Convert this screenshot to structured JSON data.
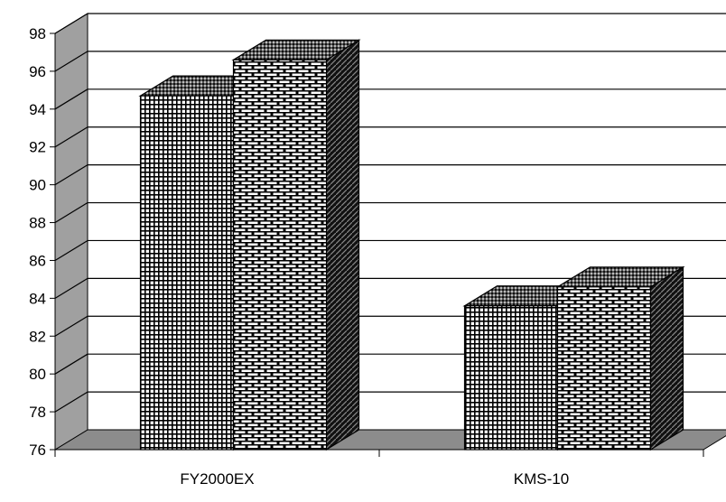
{
  "chart_data": {
    "type": "bar",
    "style": "3d-clustered-column",
    "categories": [
      "FY2000EX",
      "KMS-10"
    ],
    "series": [
      {
        "values": [
          94.7,
          83.6
        ],
        "pattern": "grid"
      },
      {
        "values": [
          96.6,
          84.6
        ],
        "pattern": "brick"
      }
    ],
    "title": "",
    "xlabel": "",
    "ylabel": "",
    "ylim": [
      76,
      98
    ],
    "yticks": [
      76,
      78,
      80,
      82,
      84,
      86,
      88,
      90,
      92,
      94,
      96,
      98
    ],
    "grid": true,
    "legend": "none",
    "colors": {
      "back_wall": "#ffffff",
      "side_wall": "#a0a0a0",
      "floor": "#8c8c8c",
      "bar_dark": "#000000",
      "bar_light": "#ffffff"
    }
  }
}
